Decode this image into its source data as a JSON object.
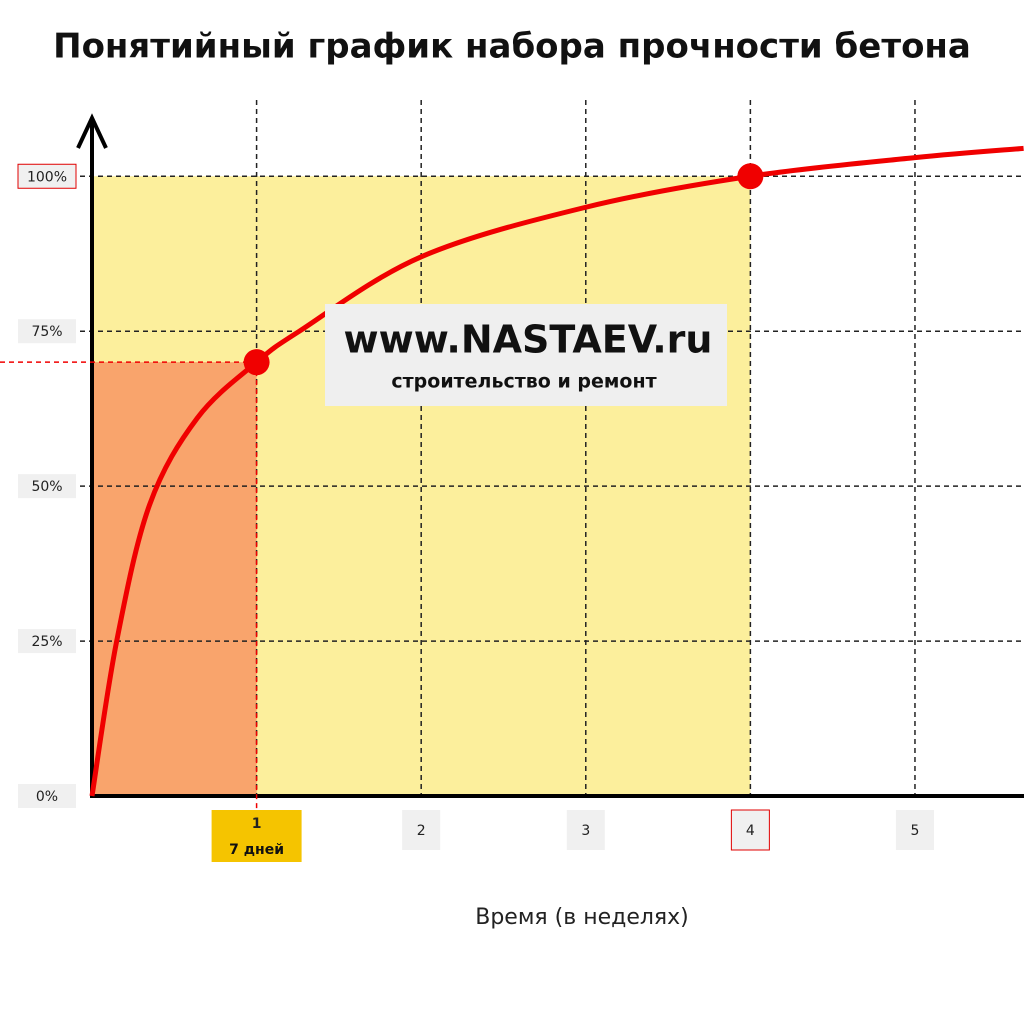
{
  "chart_data": {
    "type": "line",
    "title": "Понятийный график набора прочности бетона",
    "x_label": "Время (в неделях)",
    "watermark": {
      "site": "www.NASTAEV.ru",
      "caption": "строительство и ремонт"
    },
    "xlim": [
      0,
      5.66
    ],
    "ylim": [
      0,
      109.4
    ],
    "xticks": [
      {
        "value": 1,
        "label": "1",
        "box": "#f5c400"
      },
      2,
      3,
      {
        "value": 4,
        "label": "4",
        "outline": "#e00000"
      },
      5
    ],
    "x_notes": [
      {
        "x": 1,
        "label": "7 дней"
      }
    ],
    "yticks": [
      {
        "value": 0,
        "label": "0%"
      },
      {
        "value": 25,
        "label": "25%"
      },
      {
        "value": 50,
        "label": "50%"
      },
      {
        "value": 75,
        "label": "75%"
      },
      {
        "value": 100,
        "label": "100%",
        "outline": "#e00000"
      }
    ],
    "grid": true,
    "regions": [
      {
        "x": [
          0,
          4
        ],
        "y": [
          0,
          100
        ],
        "color": "#fcef9c"
      },
      {
        "x": [
          0,
          1
        ],
        "y": [
          0,
          70
        ],
        "color": "#f9a46c"
      }
    ],
    "series": [
      {
        "color": "#f00000",
        "x": [
          0,
          0.15,
          0.35,
          0.64,
          1,
          1.26,
          2,
          3,
          4,
          5,
          5.66
        ],
        "values": [
          0,
          25,
          47,
          61,
          70,
          75,
          87,
          95,
          100,
          103,
          104.5
        ]
      }
    ],
    "points": [
      {
        "x": 1,
        "y": 70
      },
      {
        "x": 4,
        "y": 100
      }
    ]
  }
}
